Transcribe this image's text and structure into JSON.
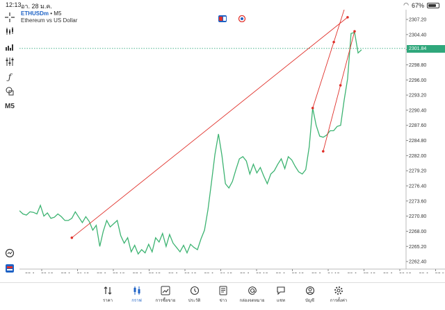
{
  "status_bar": {
    "time": "12:13",
    "date": "อา. 28 ม.ค.",
    "battery": "67%"
  },
  "symbol": {
    "name": "ETHUSDm",
    "timeframe_suffix": "• M5",
    "description": "Ethereum vs US Dollar"
  },
  "toolbar": {
    "timeframe": "M5"
  },
  "current_price": "2301.84",
  "y_axis_labels": [
    "2307.20",
    "2304.40",
    "2301.60",
    "2298.80",
    "2296.00",
    "2293.20",
    "2290.40",
    "2287.60",
    "2284.80",
    "2282.00",
    "2279.20",
    "2276.40",
    "2273.60",
    "2270.80",
    "2268.00",
    "2265.20",
    "2262.40"
  ],
  "x_axis_labels": [
    "27 Jan 20:10",
    "27 Jan 21:10",
    "27 Jan 22:10",
    "27 Jan 23:10",
    "28 Jan 00:10",
    "28 Jan 01:10",
    "28 Jan 02:10",
    "28 Jan 03:10",
    "28 Jan 04:10",
    "28 Jan 05:10",
    "28 Jan 06:10",
    "28 Jan 07:10"
  ],
  "tabs": [
    {
      "label": "ราคา",
      "icon": "quotes-icon"
    },
    {
      "label": "กราฟ",
      "icon": "candles-icon"
    },
    {
      "label": "การซื้อขาย",
      "icon": "trade-icon"
    },
    {
      "label": "ประวัติ",
      "icon": "history-icon"
    },
    {
      "label": "ข่าว",
      "icon": "news-icon"
    },
    {
      "label": "กล่องจดหมาย",
      "icon": "mailbox-icon"
    },
    {
      "label": "แชท",
      "icon": "chat-icon"
    },
    {
      "label": "บัญชี",
      "icon": "account-icon"
    },
    {
      "label": "การตั้งค่า",
      "icon": "settings-icon"
    }
  ],
  "colors": {
    "line": "#3cb371",
    "trend": "#e0302a",
    "price_tag": "#2fa77b",
    "active_tab": "#1d62c5"
  },
  "chart_data": {
    "type": "line",
    "ylim": [
      2261.0,
      2309.0
    ],
    "series": [
      {
        "values": [
          2271.8,
          2271.2,
          2271.0,
          2271.6,
          2271.5,
          2271.2,
          2272.8,
          2270.8,
          2271.4,
          2270.4,
          2270.6,
          2271.2,
          2270.7,
          2270.0,
          2270.0,
          2270.4,
          2271.6,
          2270.6,
          2269.6,
          2270.7,
          2269.8,
          2268.2,
          2269.1,
          2265.2,
          2268.0,
          2270.0,
          2268.8,
          2269.4,
          2270.0,
          2267.2,
          2265.8,
          2266.8,
          2264.2,
          2265.4,
          2263.8,
          2264.6,
          2264.0,
          2265.6,
          2264.2,
          2266.8,
          2266.0,
          2267.6,
          2265.2,
          2267.4,
          2265.8,
          2265.0,
          2264.2,
          2265.4,
          2264.0,
          2265.6,
          2265.0,
          2264.6,
          2266.6,
          2268.2,
          2272.0,
          2277.0,
          2282.2,
          2286.0,
          2282.0,
          2276.8,
          2276.0,
          2277.2,
          2279.4,
          2281.4,
          2281.8,
          2281.0,
          2278.6,
          2280.4,
          2278.8,
          2279.8,
          2278.2,
          2276.8,
          2278.6,
          2279.2,
          2280.4,
          2281.4,
          2279.6,
          2281.8,
          2281.2,
          2280.0,
          2279.0,
          2278.6,
          2279.4,
          2283.6,
          2290.8,
          2287.6,
          2285.6,
          2285.4,
          2285.8,
          2286.6,
          2286.6,
          2287.4,
          2287.6,
          2292.2,
          2296.2,
          2304.6,
          2304.8,
          2301.0,
          2301.6
        ],
        "x_range_points": [
          0,
          98
        ]
      }
    ],
    "trendlines": [
      {
        "from": {
          "index": 15,
          "price": 2266.8
        },
        "to": {
          "index": 94,
          "price": 2307.6
        }
      },
      {
        "from": {
          "index": 84,
          "price": 2290.8
        },
        "to": {
          "index": 95,
          "price": 2313.0
        }
      },
      {
        "from": {
          "index": 87,
          "price": 2282.8
        },
        "to": {
          "index": 96,
          "price": 2305.0
        }
      }
    ]
  }
}
